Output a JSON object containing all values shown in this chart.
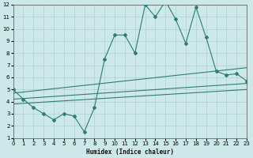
{
  "xlabel": "Humidex (Indice chaleur)",
  "xlim": [
    0,
    23
  ],
  "ylim": [
    1,
    12
  ],
  "xticks": [
    0,
    1,
    2,
    3,
    4,
    5,
    6,
    7,
    8,
    9,
    10,
    11,
    12,
    13,
    14,
    15,
    16,
    17,
    18,
    19,
    20,
    21,
    22,
    23
  ],
  "yticks": [
    1,
    2,
    3,
    4,
    5,
    6,
    7,
    8,
    9,
    10,
    11,
    12
  ],
  "bg_color": "#cde8e8",
  "grid_color": "#b0d0d0",
  "line_color": "#2e7d6e",
  "main_x": [
    0,
    1,
    2,
    3,
    4,
    5,
    6,
    7,
    8,
    9,
    10,
    11,
    12,
    13,
    14,
    15,
    16,
    17,
    18,
    19,
    20,
    21,
    22,
    23
  ],
  "main_y": [
    5.0,
    4.2,
    3.5,
    3.0,
    2.5,
    3.0,
    2.8,
    1.5,
    3.5,
    7.5,
    9.5,
    9.5,
    8.0,
    12.0,
    11.0,
    12.3,
    10.8,
    8.8,
    11.8,
    9.3,
    6.5,
    6.2,
    6.3,
    5.7
  ],
  "line1_x": [
    0,
    23
  ],
  "line1_y": [
    4.7,
    6.8
  ],
  "line2_x": [
    0,
    23
  ],
  "line2_y": [
    4.2,
    5.5
  ],
  "line3_x": [
    0,
    23
  ],
  "line3_y": [
    3.8,
    5.0
  ]
}
